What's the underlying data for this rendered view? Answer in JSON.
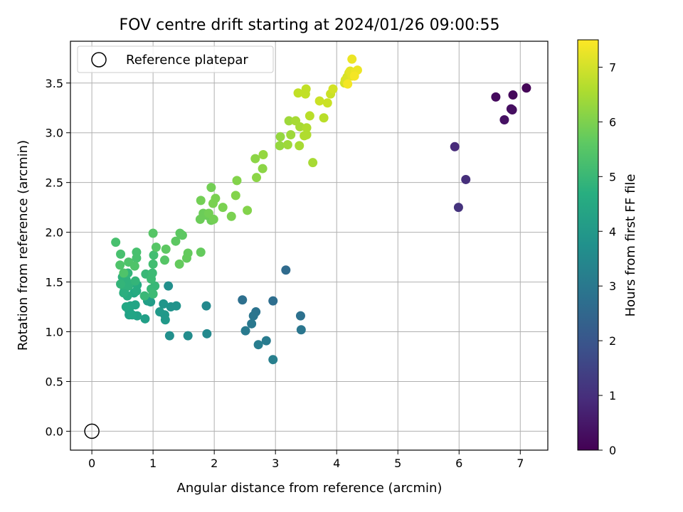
{
  "chart_data": {
    "type": "scatter",
    "title": "FOV centre drift starting at 2024/01/26 09:00:55",
    "xlabel": "Angular distance from reference (arcmin)",
    "ylabel": "Rotation from reference (arcmin)",
    "xlim": [
      -0.35,
      7.45
    ],
    "ylim": [
      -0.19,
      3.92
    ],
    "xticks": [
      0,
      1,
      2,
      3,
      4,
      5,
      6,
      7
    ],
    "yticks": [
      0.0,
      0.5,
      1.0,
      1.5,
      2.0,
      2.5,
      3.0,
      3.5
    ],
    "xtick_labels": [
      "0",
      "1",
      "2",
      "3",
      "4",
      "5",
      "6",
      "7"
    ],
    "ytick_labels": [
      "0.0",
      "0.5",
      "1.0",
      "1.5",
      "2.0",
      "2.5",
      "3.0",
      "3.5"
    ],
    "grid": true,
    "legend": {
      "position": "top-left",
      "entries": [
        "Reference platepar"
      ]
    },
    "reference_point": {
      "x": 0,
      "y": 0,
      "label": "Reference platepar"
    },
    "colorbar": {
      "label": "Hours from first FF file",
      "colormap": "viridis",
      "range": [
        0,
        7.5
      ],
      "ticks": [
        0,
        1,
        2,
        3,
        4,
        5,
        6,
        7
      ],
      "tick_labels": [
        "0",
        "1",
        "2",
        "3",
        "4",
        "5",
        "6",
        "7"
      ]
    },
    "points": [
      [
        7.1,
        3.45,
        0.1
      ],
      [
        6.88,
        3.38,
        0.15
      ],
      [
        6.6,
        3.36,
        0.2
      ],
      [
        6.87,
        3.23,
        0.25
      ],
      [
        6.85,
        3.24,
        0.3
      ],
      [
        6.74,
        3.13,
        0.35
      ],
      [
        5.93,
        2.86,
        0.9
      ],
      [
        6.11,
        2.53,
        1.0
      ],
      [
        5.99,
        2.25,
        1.1
      ],
      [
        3.17,
        1.62,
        2.6
      ],
      [
        2.96,
        1.31,
        2.7
      ],
      [
        2.46,
        1.32,
        2.75
      ],
      [
        3.41,
        1.16,
        2.8
      ],
      [
        2.68,
        1.2,
        2.85
      ],
      [
        2.64,
        1.16,
        2.9
      ],
      [
        3.42,
        1.02,
        2.95
      ],
      [
        2.61,
        1.08,
        3.0
      ],
      [
        2.51,
        1.01,
        3.05
      ],
      [
        2.85,
        0.91,
        3.1
      ],
      [
        2.72,
        0.87,
        3.15
      ],
      [
        2.96,
        0.72,
        3.2
      ],
      [
        1.87,
        1.26,
        3.5
      ],
      [
        1.88,
        0.98,
        3.5
      ],
      [
        1.57,
        0.96,
        3.6
      ],
      [
        1.27,
        0.96,
        3.7
      ],
      [
        1.25,
        1.46,
        3.7
      ],
      [
        1.38,
        1.26,
        3.8
      ],
      [
        1.29,
        1.25,
        3.8
      ],
      [
        1.17,
        1.28,
        3.9
      ],
      [
        1.11,
        1.2,
        4.0
      ],
      [
        1.19,
        1.17,
        4.0
      ],
      [
        1.2,
        1.12,
        4.0
      ],
      [
        0.96,
        1.3,
        4.1
      ],
      [
        0.91,
        1.31,
        4.2
      ],
      [
        0.87,
        1.13,
        4.2
      ],
      [
        0.74,
        1.16,
        4.3
      ],
      [
        0.61,
        1.17,
        4.3
      ],
      [
        0.61,
        1.21,
        4.3
      ],
      [
        0.66,
        1.17,
        4.4
      ],
      [
        0.71,
        1.27,
        4.4
      ],
      [
        0.63,
        1.26,
        4.4
      ],
      [
        0.56,
        1.25,
        4.5
      ],
      [
        0.69,
        1.39,
        4.5
      ],
      [
        0.73,
        1.41,
        4.6
      ],
      [
        0.74,
        1.47,
        4.6
      ],
      [
        0.58,
        1.36,
        4.6
      ],
      [
        0.53,
        1.41,
        4.7
      ],
      [
        0.52,
        1.39,
        4.7
      ],
      [
        0.56,
        1.52,
        4.7
      ],
      [
        0.57,
        1.5,
        4.8
      ],
      [
        0.6,
        1.46,
        4.8
      ],
      [
        0.51,
        1.47,
        4.8
      ],
      [
        0.5,
        1.55,
        4.8
      ],
      [
        0.47,
        1.48,
        4.9
      ],
      [
        0.59,
        1.59,
        4.9
      ],
      [
        0.71,
        1.51,
        4.9
      ],
      [
        0.88,
        1.58,
        5.0
      ],
      [
        0.86,
        1.36,
        5.0
      ],
      [
        0.97,
        1.43,
        5.0
      ],
      [
        1.03,
        1.46,
        5.0
      ],
      [
        1.0,
        1.38,
        5.1
      ],
      [
        0.97,
        1.53,
        5.1
      ],
      [
        0.99,
        1.59,
        5.1
      ],
      [
        1.0,
        1.68,
        5.2
      ],
      [
        1.01,
        1.77,
        5.2
      ],
      [
        0.73,
        1.74,
        5.3
      ],
      [
        0.73,
        1.8,
        5.3
      ],
      [
        0.47,
        1.78,
        5.3
      ],
      [
        0.39,
        1.9,
        5.3
      ],
      [
        0.46,
        1.67,
        5.4
      ],
      [
        0.6,
        1.7,
        5.4
      ],
      [
        0.7,
        1.66,
        5.4
      ],
      [
        0.52,
        1.59,
        5.4
      ],
      [
        1.0,
        1.99,
        5.5
      ],
      [
        1.05,
        1.85,
        5.5
      ],
      [
        1.19,
        1.72,
        5.5
      ],
      [
        1.21,
        1.83,
        5.6
      ],
      [
        1.37,
        1.91,
        5.6
      ],
      [
        1.44,
        1.99,
        5.6
      ],
      [
        1.48,
        1.97,
        5.6
      ],
      [
        1.43,
        1.68,
        5.7
      ],
      [
        1.55,
        1.74,
        5.7
      ],
      [
        1.57,
        1.79,
        5.7
      ],
      [
        1.78,
        1.8,
        5.7
      ],
      [
        1.77,
        2.13,
        5.8
      ],
      [
        1.82,
        2.19,
        5.8
      ],
      [
        1.88,
        2.17,
        5.8
      ],
      [
        1.95,
        2.12,
        5.8
      ],
      [
        1.91,
        2.19,
        5.9
      ],
      [
        1.78,
        2.32,
        5.9
      ],
      [
        1.95,
        2.45,
        5.9
      ],
      [
        1.99,
        2.13,
        5.9
      ],
      [
        1.98,
        2.29,
        6.0
      ],
      [
        2.02,
        2.34,
        6.0
      ],
      [
        2.14,
        2.25,
        6.0
      ],
      [
        2.28,
        2.16,
        6.0
      ],
      [
        2.35,
        2.37,
        6.1
      ],
      [
        2.37,
        2.52,
        6.1
      ],
      [
        2.54,
        2.22,
        6.1
      ],
      [
        2.69,
        2.55,
        6.2
      ],
      [
        2.67,
        2.74,
        6.2
      ],
      [
        2.79,
        2.64,
        6.2
      ],
      [
        2.8,
        2.78,
        6.3
      ],
      [
        3.07,
        2.87,
        6.3
      ],
      [
        3.08,
        2.96,
        6.3
      ],
      [
        3.2,
        2.88,
        6.4
      ],
      [
        3.25,
        2.98,
        6.4
      ],
      [
        3.22,
        3.12,
        6.4
      ],
      [
        3.33,
        3.12,
        6.5
      ],
      [
        3.39,
        2.87,
        6.5
      ],
      [
        3.4,
        3.06,
        6.5
      ],
      [
        3.47,
        2.97,
        6.6
      ],
      [
        3.51,
        3.05,
        6.6
      ],
      [
        3.51,
        2.98,
        6.6
      ],
      [
        3.61,
        2.7,
        6.5
      ],
      [
        3.56,
        3.17,
        6.7
      ],
      [
        3.79,
        3.15,
        6.7
      ],
      [
        3.37,
        3.4,
        6.8
      ],
      [
        3.49,
        3.39,
        6.8
      ],
      [
        3.5,
        3.44,
        6.8
      ],
      [
        3.72,
        3.32,
        6.9
      ],
      [
        3.85,
        3.3,
        6.9
      ],
      [
        3.9,
        3.39,
        6.9
      ],
      [
        3.94,
        3.44,
        7.0
      ],
      [
        4.13,
        3.5,
        7.0
      ],
      [
        4.17,
        3.56,
        7.0
      ],
      [
        4.2,
        3.6,
        7.1
      ],
      [
        4.14,
        3.53,
        7.1
      ],
      [
        4.25,
        3.57,
        7.2
      ],
      [
        4.22,
        3.62,
        7.2
      ],
      [
        4.3,
        3.61,
        7.3
      ],
      [
        4.34,
        3.63,
        7.3
      ],
      [
        4.25,
        3.74,
        7.3
      ],
      [
        4.29,
        3.57,
        7.4
      ],
      [
        4.18,
        3.49,
        7.4
      ]
    ]
  }
}
